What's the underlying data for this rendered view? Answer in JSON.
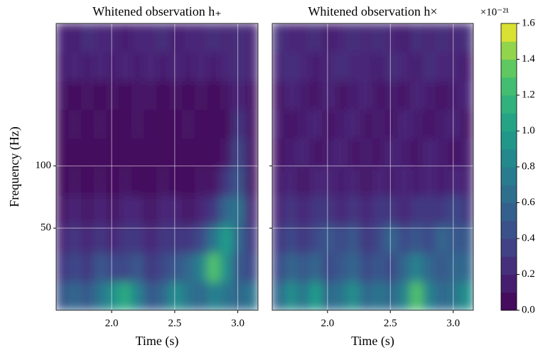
{
  "chart_data": [
    {
      "type": "contour",
      "title": "Whitened observation h₊",
      "xlabel": "Time (s)",
      "ylabel": "Frequency (Hz)",
      "xlim": [
        1.56,
        3.16
      ],
      "xticks": [
        {
          "value": 2,
          "label": "2.0"
        },
        2.5,
        {
          "value": 3,
          "label": "3.0"
        }
      ],
      "ylim": [
        20,
        490
      ],
      "yticks": [
        50,
        100
      ],
      "yscale": "log",
      "show_yticklabels": true,
      "grid": true,
      "colormap": "viridis",
      "clim": [
        0,
        1.6
      ],
      "z": [
        [
          0.5,
          0.6,
          0.5,
          0.7,
          0.9,
          1.1,
          0.8,
          0.5,
          0.6,
          0.9,
          0.7,
          0.6,
          0.8,
          0.7,
          0.6,
          0.7
        ],
        [
          0.3,
          0.4,
          0.3,
          0.5,
          0.4,
          0.4,
          0.5,
          0.3,
          0.4,
          0.5,
          0.6,
          0.8,
          1.3,
          0.9,
          0.5,
          0.4
        ],
        [
          0.2,
          0.3,
          0.2,
          0.3,
          0.2,
          0.3,
          0.3,
          0.2,
          0.3,
          0.3,
          0.3,
          0.4,
          0.7,
          1.0,
          0.6,
          0.3
        ],
        [
          0.1,
          0.2,
          0.1,
          0.2,
          0.1,
          0.2,
          0.2,
          0.1,
          0.2,
          0.2,
          0.1,
          0.2,
          0.3,
          0.6,
          0.7,
          0.2
        ],
        [
          0.05,
          0.1,
          0.05,
          0.1,
          0.05,
          0.1,
          0.05,
          0.05,
          0.1,
          0.05,
          0.05,
          0.1,
          0.1,
          0.3,
          0.5,
          0.1
        ],
        [
          0.05,
          0.05,
          0.05,
          0.05,
          0.05,
          0.05,
          0.05,
          0.05,
          0.05,
          0.05,
          0.05,
          0.05,
          0.05,
          0.1,
          0.4,
          0.1
        ],
        [
          0.05,
          0.1,
          0.05,
          0.1,
          0.05,
          0.05,
          0.1,
          0.05,
          0.05,
          0.05,
          0.1,
          0.05,
          0.05,
          0.05,
          0.3,
          0.1
        ],
        [
          0.1,
          0.05,
          0.1,
          0.05,
          0.1,
          0.05,
          0.1,
          0.1,
          0.05,
          0.1,
          0.05,
          0.1,
          0.05,
          0.1,
          0.2,
          0.1
        ],
        [
          0.15,
          0.2,
          0.15,
          0.2,
          0.15,
          0.2,
          0.15,
          0.2,
          0.15,
          0.2,
          0.15,
          0.2,
          0.15,
          0.2,
          0.25,
          0.2
        ],
        [
          0.2,
          0.15,
          0.25,
          0.2,
          0.2,
          0.15,
          0.2,
          0.2,
          0.25,
          0.15,
          0.2,
          0.2,
          0.25,
          0.2,
          0.25,
          0.2
        ]
      ]
    },
    {
      "type": "contour",
      "title": "Whitened observation h×",
      "xlabel": "Time (s)",
      "xlim": [
        1.56,
        3.16
      ],
      "xticks": [
        {
          "value": 2,
          "label": "2.0"
        },
        2.5,
        {
          "value": 3,
          "label": "3.0"
        }
      ],
      "ylim": [
        20,
        490
      ],
      "yticks": [
        50,
        100
      ],
      "yscale": "log",
      "show_yticklabels": false,
      "grid": true,
      "colormap": "viridis",
      "clim": [
        0,
        1.6
      ],
      "z": [
        [
          0.6,
          0.9,
          0.7,
          1.0,
          0.6,
          0.7,
          0.9,
          0.6,
          0.7,
          0.6,
          0.8,
          1.3,
          0.8,
          0.6,
          0.7,
          0.9
        ],
        [
          0.4,
          0.6,
          0.5,
          0.6,
          0.4,
          0.5,
          0.6,
          0.4,
          0.5,
          0.4,
          0.6,
          0.8,
          0.6,
          0.5,
          0.6,
          0.6
        ],
        [
          0.3,
          0.4,
          0.3,
          0.4,
          0.5,
          0.4,
          0.5,
          0.3,
          0.4,
          0.6,
          0.4,
          0.5,
          0.4,
          0.6,
          0.5,
          0.5
        ],
        [
          0.2,
          0.3,
          0.2,
          0.3,
          0.3,
          0.2,
          0.3,
          0.2,
          0.3,
          0.3,
          0.2,
          0.3,
          0.3,
          0.3,
          0.4,
          0.3
        ],
        [
          0.15,
          0.2,
          0.1,
          0.2,
          0.2,
          0.15,
          0.2,
          0.1,
          0.2,
          0.15,
          0.2,
          0.15,
          0.2,
          0.15,
          0.2,
          0.2
        ],
        [
          0.1,
          0.15,
          0.2,
          0.1,
          0.15,
          0.2,
          0.1,
          0.15,
          0.1,
          0.2,
          0.15,
          0.1,
          0.2,
          0.15,
          0.1,
          0.15
        ],
        [
          0.15,
          0.1,
          0.15,
          0.2,
          0.1,
          0.15,
          0.2,
          0.1,
          0.15,
          0.1,
          0.2,
          0.15,
          0.1,
          0.15,
          0.2,
          0.1
        ],
        [
          0.1,
          0.2,
          0.15,
          0.1,
          0.2,
          0.1,
          0.15,
          0.2,
          0.1,
          0.15,
          0.1,
          0.2,
          0.15,
          0.1,
          0.15,
          0.2
        ],
        [
          0.2,
          0.25,
          0.2,
          0.15,
          0.2,
          0.25,
          0.2,
          0.2,
          0.15,
          0.25,
          0.2,
          0.15,
          0.25,
          0.2,
          0.2,
          0.15
        ],
        [
          0.25,
          0.2,
          0.2,
          0.25,
          0.15,
          0.2,
          0.25,
          0.2,
          0.25,
          0.2,
          0.15,
          0.25,
          0.2,
          0.25,
          0.2,
          0.25
        ]
      ],
      "colorbar": {
        "ticks": [
          {
            "value": 0,
            "label": "0.0"
          },
          0.2,
          0.4,
          0.6,
          0.8,
          {
            "value": 1,
            "label": "1.0"
          },
          1.2,
          1.4,
          1.6
        ],
        "level_step": 0.1,
        "offset_label": "×10⁻²¹"
      }
    }
  ]
}
